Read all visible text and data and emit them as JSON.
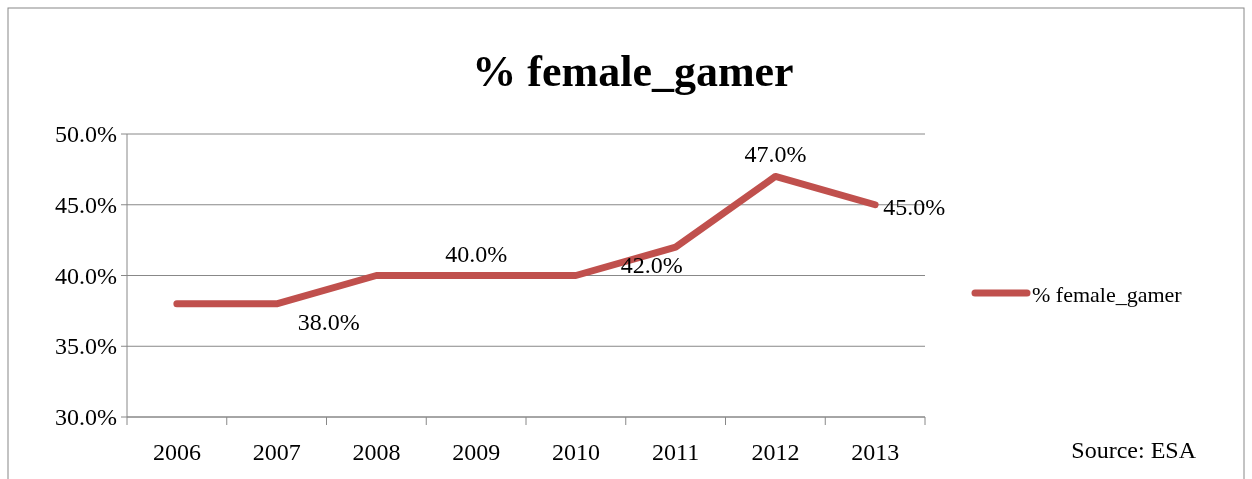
{
  "chart_data": {
    "type": "line",
    "title": "% female_gamer",
    "categories": [
      "2006",
      "2007",
      "2008",
      "2009",
      "2010",
      "2011",
      "2012",
      "2013"
    ],
    "series": [
      {
        "name": "% female_gamer",
        "color": "#c0504d",
        "values": [
          38,
          38,
          40,
          40,
          40,
          42,
          47,
          45
        ],
        "value_labels": [
          null,
          "38.0%",
          null,
          "40.0%",
          null,
          "42.0%",
          "47.0%",
          "45.0%"
        ]
      }
    ],
    "ylim": [
      30,
      50
    ],
    "yticks": [
      {
        "value": 30,
        "label": "30.0%"
      },
      {
        "value": 35,
        "label": "35.0%"
      },
      {
        "value": 40,
        "label": "40.0%"
      },
      {
        "value": 45,
        "label": "45.0%"
      },
      {
        "value": 50,
        "label": "50.0%"
      }
    ],
    "grid": "y",
    "legend": "right",
    "marker": "none",
    "line_style": "solid",
    "annotations": [
      "Source: ESA"
    ]
  }
}
